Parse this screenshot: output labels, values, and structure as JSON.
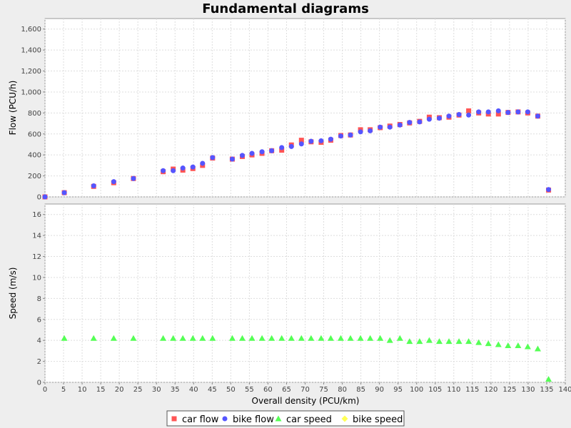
{
  "chart_data": {
    "type": "scatter",
    "title": "Fundamental diagrams",
    "xlabel": "Overall density (PCU/km)",
    "xlim": [
      0,
      140
    ],
    "x_ticks": [
      0,
      5,
      10,
      15,
      20,
      25,
      30,
      35,
      40,
      45,
      50,
      55,
      60,
      65,
      70,
      75,
      80,
      85,
      90,
      95,
      100,
      105,
      110,
      115,
      120,
      125,
      130,
      135,
      140
    ],
    "grid": true,
    "legend_position": "bottom",
    "panels": [
      {
        "ylabel": "Flow (PCU/h)",
        "ylim": [
          0,
          1700
        ],
        "y_ticks": [
          0,
          200,
          400,
          600,
          800,
          1000,
          1200,
          1400,
          1600
        ],
        "y_tick_labels": [
          "0",
          "200",
          "400",
          "600",
          "800",
          "1,000",
          "1,200",
          "1,400",
          "1,600"
        ],
        "series": [
          {
            "name": "car flow",
            "marker": "square",
            "color": "#ff5555",
            "x": [
              0,
              5.2,
              13.1,
              18.5,
              23.8,
              31.8,
              34.5,
              37.1,
              39.8,
              42.4,
              45.1,
              50.4,
              53.1,
              55.7,
              58.4,
              61,
              63.7,
              66.3,
              69,
              71.6,
              74.3,
              76.9,
              79.6,
              82.2,
              84.9,
              87.5,
              90.2,
              92.8,
              95.5,
              98.1,
              100.8,
              103.4,
              106.1,
              108.7,
              111.4,
              114,
              116.7,
              119.3,
              122,
              124.6,
              127.3,
              129.9,
              132.6,
              135.5
            ],
            "y": [
              0,
              40,
              100,
              135,
              175,
              240,
              265,
              255,
              270,
              300,
              370,
              360,
              385,
              400,
              415,
              440,
              445,
              495,
              540,
              525,
              520,
              540,
              585,
              590,
              640,
              640,
              660,
              675,
              690,
              705,
              720,
              760,
              755,
              760,
              780,
              820,
              800,
              790,
              790,
              805,
              810,
              800,
              770,
              65
            ]
          },
          {
            "name": "bike flow",
            "marker": "circle",
            "color": "#5555ff",
            "x": [
              0,
              5.2,
              13.1,
              18.5,
              23.8,
              31.8,
              34.5,
              37.1,
              39.8,
              42.4,
              45.1,
              50.4,
              53.1,
              55.7,
              58.4,
              61,
              63.7,
              66.3,
              69,
              71.6,
              74.3,
              76.9,
              79.6,
              82.2,
              84.9,
              87.5,
              90.2,
              92.8,
              95.5,
              98.1,
              100.8,
              103.4,
              106.1,
              108.7,
              111.4,
              114,
              116.7,
              119.3,
              122,
              124.6,
              127.3,
              129.9,
              132.6,
              135.5
            ],
            "y": [
              0,
              40,
              105,
              145,
              175,
              250,
              250,
              275,
              285,
              320,
              375,
              360,
              395,
              415,
              430,
              440,
              470,
              480,
              505,
              530,
              535,
              550,
              580,
              590,
              620,
              630,
              665,
              665,
              685,
              710,
              715,
              740,
              750,
              770,
              785,
              780,
              810,
              810,
              820,
              805,
              810,
              810,
              770,
              70
            ]
          }
        ]
      },
      {
        "ylabel": "Speed (m/s)",
        "ylim": [
          0,
          17
        ],
        "y_ticks": [
          0,
          2,
          4,
          6,
          8,
          10,
          12,
          14,
          16
        ],
        "y_tick_labels": [
          "0",
          "2",
          "4",
          "6",
          "8",
          "10",
          "12",
          "14",
          "16"
        ],
        "series": [
          {
            "name": "car speed",
            "marker": "triangle",
            "color": "#55ff55",
            "x": [
              5.2,
              13.1,
              18.5,
              23.8,
              31.8,
              34.5,
              37.1,
              39.8,
              42.4,
              45.1,
              50.4,
              53.1,
              55.7,
              58.4,
              61,
              63.7,
              66.3,
              69,
              71.6,
              74.3,
              76.9,
              79.6,
              82.2,
              84.9,
              87.5,
              90.2,
              92.8,
              95.5,
              98.1,
              100.8,
              103.4,
              106.1,
              108.7,
              111.4,
              114,
              116.7,
              119.3,
              122,
              124.6,
              127.3,
              129.9,
              132.6,
              135.5
            ],
            "y": [
              4.2,
              4.2,
              4.2,
              4.2,
              4.2,
              4.2,
              4.2,
              4.2,
              4.2,
              4.2,
              4.2,
              4.2,
              4.2,
              4.2,
              4.2,
              4.2,
              4.2,
              4.2,
              4.2,
              4.2,
              4.2,
              4.2,
              4.2,
              4.2,
              4.2,
              4.2,
              4.0,
              4.2,
              3.9,
              3.9,
              4.0,
              3.9,
              3.9,
              3.9,
              3.9,
              3.8,
              3.7,
              3.6,
              3.5,
              3.5,
              3.4,
              3.2,
              0.3
            ]
          },
          {
            "name": "bike speed",
            "marker": "diamond",
            "color": "#ffff55",
            "x": [],
            "y": []
          }
        ]
      }
    ],
    "legend": [
      {
        "label": "car flow",
        "marker": "square",
        "color": "#ff5555"
      },
      {
        "label": "bike flow",
        "marker": "circle",
        "color": "#5555ff"
      },
      {
        "label": "car speed",
        "marker": "triangle",
        "color": "#55ff55"
      },
      {
        "label": "bike speed",
        "marker": "diamond",
        "color": "#ffff55"
      }
    ]
  }
}
